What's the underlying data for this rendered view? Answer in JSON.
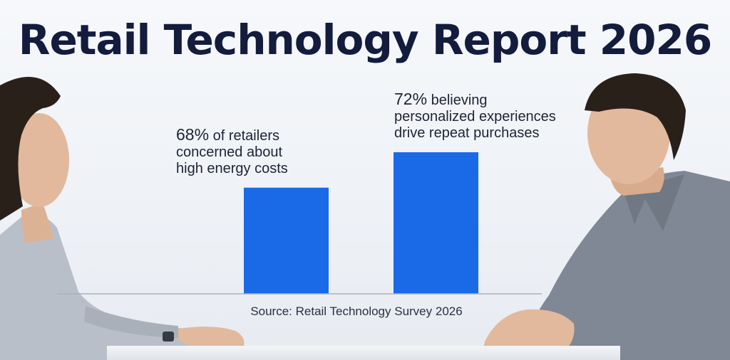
{
  "chart_data": {
    "type": "bar",
    "title": "Retail Technology Report 2026",
    "categories": [
      "of retailers concerned about high energy costs",
      "believing personalized experiences drive repeat purchases"
    ],
    "values": [
      68,
      72
    ],
    "unit": "%",
    "annotations": [
      {
        "value_label": "68%",
        "lines": [
          "of retailers",
          "concerned about",
          "high energy costs"
        ]
      },
      {
        "value_label": "72%",
        "lines": [
          "believing",
          "personalized experiences",
          "drive repeat purchases"
        ]
      }
    ],
    "source": "Source: Retail Technology Survey 2026",
    "bar_color": "#1a6ae8",
    "grid": false,
    "legend": "none"
  },
  "scene": {
    "left_person": "woman-profile-facing-right",
    "right_person": "man-facing-left",
    "colors": {
      "title": "#131c3d",
      "shirt_left": "#b9bfc8",
      "shirt_right": "#7f8894",
      "skin": "#e2b99c",
      "hair": "#2a201a"
    }
  }
}
